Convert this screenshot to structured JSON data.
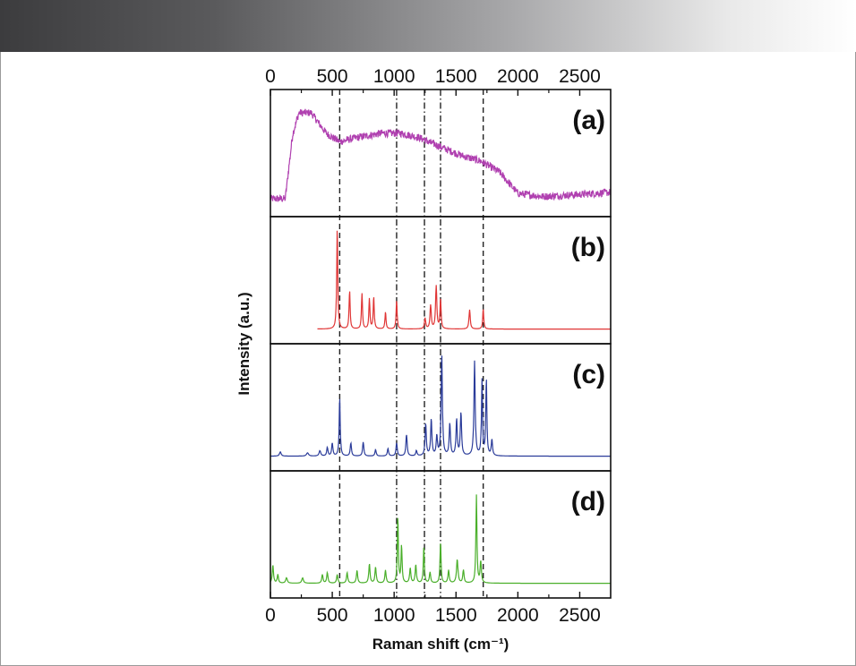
{
  "chart_data": {
    "type": "line",
    "title": "",
    "xlabel": "Raman shift (cm⁻¹)",
    "ylabel": "Intensity (a.u.)",
    "xlim": [
      0,
      2750
    ],
    "xticks": [
      0,
      500,
      1000,
      1500,
      2000,
      2500
    ],
    "top_xticks": [
      0,
      500,
      1000,
      1500,
      2000,
      2500
    ],
    "grid": false,
    "reference_lines": [
      {
        "x": 560,
        "style": "dashed"
      },
      {
        "x": 1020,
        "style": "dash-dot"
      },
      {
        "x": 1245,
        "style": "dash-dot"
      },
      {
        "x": 1375,
        "style": "dash-dot"
      },
      {
        "x": 1720,
        "style": "dashed"
      }
    ],
    "panels": [
      {
        "label": "(a)",
        "color": "#b040b0",
        "kind": "broad",
        "x_start": 0,
        "x_end": 2750,
        "baseline": 0.05,
        "steps": [
          [
            0,
            0.05
          ],
          [
            120,
            0.05
          ],
          [
            180,
            0.65
          ],
          [
            230,
            0.85
          ],
          [
            330,
            0.85
          ],
          [
            450,
            0.66
          ],
          [
            560,
            0.58
          ],
          [
            700,
            0.62
          ],
          [
            900,
            0.66
          ],
          [
            1050,
            0.66
          ],
          [
            1200,
            0.62
          ],
          [
            1400,
            0.52
          ],
          [
            1550,
            0.45
          ],
          [
            1700,
            0.4
          ],
          [
            1850,
            0.3
          ],
          [
            2000,
            0.1
          ],
          [
            2200,
            0.07
          ],
          [
            2500,
            0.09
          ],
          [
            2750,
            0.11
          ]
        ],
        "noise": 0.035
      },
      {
        "label": "(b)",
        "color": "#e03535",
        "kind": "peaks",
        "x_start": 380,
        "x_end": 2750,
        "baseline": 0.02,
        "peaks": [
          [
            540,
            0.95,
            5
          ],
          [
            640,
            0.36,
            5
          ],
          [
            740,
            0.33,
            5
          ],
          [
            800,
            0.28,
            5
          ],
          [
            835,
            0.3,
            5
          ],
          [
            930,
            0.16,
            5
          ],
          [
            1020,
            0.27,
            5
          ],
          [
            1250,
            0.1,
            6
          ],
          [
            1295,
            0.22,
            6
          ],
          [
            1340,
            0.4,
            6
          ],
          [
            1375,
            0.28,
            5
          ],
          [
            1610,
            0.18,
            6
          ],
          [
            1720,
            0.19,
            5
          ]
        ]
      },
      {
        "label": "(c)",
        "color": "#2b3c9a",
        "kind": "peaks",
        "x_start": 0,
        "x_end": 2750,
        "baseline": 0.02,
        "peaks": [
          [
            80,
            0.04,
            8
          ],
          [
            300,
            0.03,
            10
          ],
          [
            400,
            0.05,
            8
          ],
          [
            460,
            0.08,
            6
          ],
          [
            500,
            0.12,
            6
          ],
          [
            560,
            0.55,
            5
          ],
          [
            650,
            0.12,
            6
          ],
          [
            750,
            0.13,
            6
          ],
          [
            850,
            0.06,
            6
          ],
          [
            950,
            0.07,
            6
          ],
          [
            1020,
            0.12,
            6
          ],
          [
            1100,
            0.2,
            6
          ],
          [
            1180,
            0.05,
            6
          ],
          [
            1255,
            0.3,
            6
          ],
          [
            1300,
            0.34,
            6
          ],
          [
            1345,
            0.18,
            6
          ],
          [
            1385,
            0.95,
            6
          ],
          [
            1450,
            0.3,
            6
          ],
          [
            1505,
            0.34,
            6
          ],
          [
            1540,
            0.4,
            6
          ],
          [
            1650,
            0.88,
            6
          ],
          [
            1710,
            0.7,
            5
          ],
          [
            1745,
            0.72,
            5
          ],
          [
            1790,
            0.15,
            6
          ]
        ]
      },
      {
        "label": "(d)",
        "color": "#4aaf2a",
        "kind": "peaks",
        "x_start": 0,
        "x_end": 2750,
        "baseline": 0.02,
        "peaks": [
          [
            20,
            0.17,
            6
          ],
          [
            60,
            0.08,
            6
          ],
          [
            130,
            0.05,
            8
          ],
          [
            260,
            0.05,
            8
          ],
          [
            420,
            0.08,
            6
          ],
          [
            460,
            0.1,
            6
          ],
          [
            540,
            0.08,
            6
          ],
          [
            620,
            0.1,
            6
          ],
          [
            700,
            0.12,
            6
          ],
          [
            800,
            0.18,
            6
          ],
          [
            850,
            0.15,
            6
          ],
          [
            930,
            0.12,
            6
          ],
          [
            1030,
            0.62,
            5
          ],
          [
            1060,
            0.35,
            5
          ],
          [
            1130,
            0.14,
            6
          ],
          [
            1175,
            0.17,
            6
          ],
          [
            1240,
            0.34,
            5
          ],
          [
            1290,
            0.1,
            6
          ],
          [
            1375,
            0.38,
            5
          ],
          [
            1440,
            0.12,
            6
          ],
          [
            1510,
            0.22,
            7
          ],
          [
            1560,
            0.12,
            6
          ],
          [
            1665,
            0.82,
            5
          ],
          [
            1700,
            0.2,
            6
          ]
        ]
      }
    ]
  }
}
